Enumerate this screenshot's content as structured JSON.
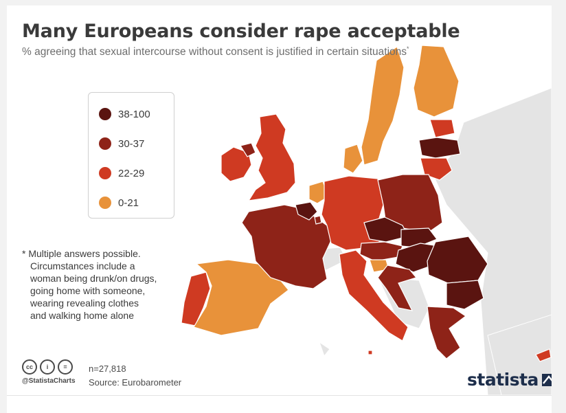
{
  "title": "Many Europeans consider rape acceptable",
  "subtitle": "% agreeing that sexual intercourse without consent is justified in certain situations",
  "subtitle_mark": "*",
  "legend": [
    {
      "label": "38-100",
      "color": "#5a1410"
    },
    {
      "label": "30-37",
      "color": "#8e2318"
    },
    {
      "label": "22-29",
      "color": "#cf3a22"
    },
    {
      "label": "0-21",
      "color": "#e8923a"
    }
  ],
  "footnote": [
    "* Multiple answers possible.",
    "Circumstances include a",
    "woman being drunk/on drugs,",
    "going home with someone,",
    "wearing revealing clothes",
    "and walking home alone"
  ],
  "footer": {
    "handle": "@StatistaCharts",
    "sample": "n=27,818",
    "source": "Source: Eurobarometer",
    "logo": "statista",
    "cc_icons": [
      "cc-icon",
      "by-icon",
      "nd-icon"
    ],
    "cc_glyphs": [
      "cc",
      "i",
      "="
    ]
  },
  "colors": {
    "background_land": "#e4e4e4",
    "text": "#3a3a3a"
  },
  "map_data": [
    {
      "name": "Ireland",
      "class": "22-29"
    },
    {
      "name": "Northern Ireland",
      "class": "30-37"
    },
    {
      "name": "United Kingdom",
      "class": "22-29"
    },
    {
      "name": "Portugal",
      "class": "22-29"
    },
    {
      "name": "Spain",
      "class": "0-21"
    },
    {
      "name": "France",
      "class": "30-37"
    },
    {
      "name": "Belgium",
      "class": "38-100"
    },
    {
      "name": "Luxembourg",
      "class": "30-37"
    },
    {
      "name": "Netherlands",
      "class": "0-21"
    },
    {
      "name": "Germany",
      "class": "22-29"
    },
    {
      "name": "Denmark",
      "class": "0-21"
    },
    {
      "name": "Sweden",
      "class": "0-21"
    },
    {
      "name": "Finland",
      "class": "0-21"
    },
    {
      "name": "Estonia",
      "class": "22-29"
    },
    {
      "name": "Latvia",
      "class": "38-100"
    },
    {
      "name": "Lithuania",
      "class": "22-29"
    },
    {
      "name": "Poland",
      "class": "30-37"
    },
    {
      "name": "Czech Republic",
      "class": "38-100"
    },
    {
      "name": "Slovakia",
      "class": "38-100"
    },
    {
      "name": "Austria",
      "class": "30-37"
    },
    {
      "name": "Hungary",
      "class": "38-100"
    },
    {
      "name": "Slovenia",
      "class": "0-21"
    },
    {
      "name": "Croatia",
      "class": "30-37"
    },
    {
      "name": "Italy",
      "class": "22-29"
    },
    {
      "name": "Romania",
      "class": "38-100"
    },
    {
      "name": "Bulgaria",
      "class": "38-100"
    },
    {
      "name": "Greece",
      "class": "30-37"
    },
    {
      "name": "Cyprus",
      "class": "22-29"
    },
    {
      "name": "Malta",
      "class": "22-29"
    }
  ]
}
